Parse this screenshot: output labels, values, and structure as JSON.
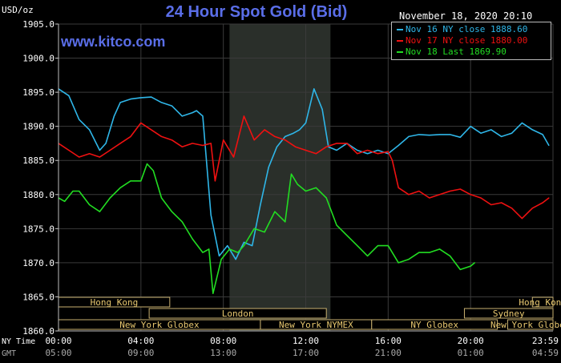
{
  "chart_data": {
    "type": "line",
    "title": "24 Hour Spot Gold (Bid)",
    "brand": "www.kitco.com",
    "unit_label": "USD/oz",
    "datestamp": "November 18, 2020 20:10",
    "ylim": [
      1860,
      1905
    ],
    "y_ticks": [
      "1905.0",
      "1900.0",
      "1895.0",
      "1890.0",
      "1885.0",
      "1880.0",
      "1875.0",
      "1870.0",
      "1865.0",
      "1860.0"
    ],
    "xlim": [
      0,
      24
    ],
    "x_ticks": [
      {
        "x": 0,
        "ny": "00:00",
        "gmt": "05:00"
      },
      {
        "x": 4,
        "ny": "04:00",
        "gmt": "09:00"
      },
      {
        "x": 8,
        "ny": "08:00",
        "gmt": "13:00"
      },
      {
        "x": 12,
        "ny": "12:00",
        "gmt": "17:00"
      },
      {
        "x": 16,
        "ny": "16:00",
        "gmt": "21:00"
      },
      {
        "x": 20,
        "ny": "20:00",
        "gmt": "01:00"
      },
      {
        "x": 24,
        "ny": "23:59",
        "gmt": "04:59"
      }
    ],
    "ny_time_label": "NY Time",
    "gmt_label": "GMT",
    "highlight_range": [
      8.3,
      13.2
    ],
    "grid": true,
    "legend_position": "top-right",
    "series": [
      {
        "name": "Nov 16 NY close 1888.60",
        "color": "#2fb6e8",
        "x": [
          0,
          0.5,
          1,
          1.5,
          2,
          2.3,
          2.7,
          3,
          3.5,
          4,
          4.5,
          5,
          5.5,
          6,
          6.5,
          6.7,
          7,
          7.4,
          7.8,
          8.2,
          8.6,
          9,
          9.4,
          9.8,
          10.2,
          10.6,
          11,
          11.4,
          11.7,
          12,
          12.4,
          12.8,
          13.1,
          13.5,
          14,
          14.5,
          15,
          15.5,
          16,
          16.5,
          17,
          17.5,
          18,
          18.5,
          19,
          19.5,
          20,
          20.5,
          21,
          21.5,
          22,
          22.5,
          23,
          23.5,
          23.8
        ],
        "y": [
          1895.5,
          1894.5,
          1891,
          1889.5,
          1886.5,
          1887.5,
          1891.5,
          1893.5,
          1894,
          1894.2,
          1894.3,
          1893.5,
          1893,
          1891.5,
          1892,
          1892.3,
          1891.5,
          1877,
          1871,
          1872.5,
          1870.5,
          1873,
          1872.5,
          1878.5,
          1884,
          1887,
          1888.5,
          1889,
          1889.5,
          1890.5,
          1895.5,
          1892.5,
          1887,
          1886.5,
          1887.5,
          1886.5,
          1886,
          1886.5,
          1886,
          1887.2,
          1888.5,
          1888.8,
          1888.7,
          1888.8,
          1888.8,
          1888.4,
          1890,
          1889,
          1889.5,
          1888.5,
          1889,
          1890.5,
          1889.5,
          1888.8,
          1887.2
        ]
      },
      {
        "name": "Nov 17 NY close 1880.00",
        "color": "#ee1111",
        "x": [
          0,
          0.5,
          1,
          1.5,
          2,
          2.5,
          3,
          3.5,
          4,
          4.5,
          5,
          5.5,
          6,
          6.5,
          7,
          7.4,
          7.6,
          8,
          8.5,
          9,
          9.5,
          10,
          10.5,
          11,
          11.5,
          12,
          12.5,
          13,
          13.5,
          14,
          14.5,
          15,
          15.5,
          16,
          16.2,
          16.5,
          17,
          17.5,
          18,
          18.5,
          19,
          19.5,
          20,
          20.5,
          21,
          21.5,
          22,
          22.5,
          23,
          23.5,
          23.8
        ],
        "y": [
          1887.5,
          1886.5,
          1885.5,
          1886,
          1885.5,
          1886.5,
          1887.5,
          1888.5,
          1890.5,
          1889.5,
          1888.5,
          1888,
          1887,
          1887.5,
          1887.2,
          1887.5,
          1882,
          1888,
          1885.5,
          1891.5,
          1888,
          1889.5,
          1888.5,
          1888,
          1887,
          1886.5,
          1886,
          1887,
          1887.5,
          1887.5,
          1886,
          1886.5,
          1886,
          1886.3,
          1885,
          1881,
          1880,
          1880.5,
          1879.5,
          1880,
          1880.5,
          1880.8,
          1880,
          1879.5,
          1878.5,
          1878.8,
          1878,
          1876.5,
          1878,
          1878.8,
          1879.5
        ]
      },
      {
        "name": "Nov 18 Last 1869.90",
        "color": "#22dd22",
        "x": [
          0,
          0.3,
          0.7,
          1,
          1.5,
          2,
          2.5,
          3,
          3.5,
          4,
          4.3,
          4.6,
          5,
          5.5,
          6,
          6.5,
          7,
          7.3,
          7.5,
          7.9,
          8.3,
          8.7,
          9,
          9.5,
          10,
          10.5,
          11,
          11.3,
          11.6,
          12,
          12.5,
          13,
          13.5,
          14,
          14.5,
          15,
          15.5,
          16,
          16.5,
          17,
          17.5,
          18,
          18.5,
          19,
          19.5,
          20,
          20.2
        ],
        "y": [
          1879.5,
          1879,
          1880.5,
          1880.5,
          1878.5,
          1877.5,
          1879.5,
          1881,
          1882,
          1882,
          1884.5,
          1883.5,
          1879.5,
          1877.5,
          1876,
          1873.5,
          1871.5,
          1872,
          1865.5,
          1870.5,
          1872,
          1871.5,
          1872.5,
          1875,
          1874.5,
          1877.5,
          1876,
          1883,
          1881.5,
          1880.5,
          1881,
          1879.5,
          1875.5,
          1874,
          1872.5,
          1871,
          1872.5,
          1872.5,
          1870,
          1870.5,
          1871.5,
          1871.5,
          1872,
          1871,
          1869,
          1869.5,
          1870
        ]
      }
    ],
    "sessions": [
      {
        "label": "Hong Kong",
        "start": 0,
        "end": 5.4,
        "row": 0
      },
      {
        "label": "London",
        "start": 4.4,
        "end": 13.0,
        "row": 1
      },
      {
        "label": "New York Globex",
        "start": 0,
        "end": 9.8,
        "row": 2
      },
      {
        "label": "New York NYMEX",
        "start": 9.8,
        "end": 15.2,
        "row": 2
      },
      {
        "label": "NY Globex",
        "start": 15.2,
        "end": 21.3,
        "row": 2
      },
      {
        "label": "Sydney",
        "start": 19.7,
        "end": 24,
        "row": 1
      },
      {
        "label": "Hong Kong",
        "start": 23.0,
        "end": 24,
        "row": 0
      },
      {
        "label": "New York Globex",
        "start": 21.8,
        "end": 24,
        "row": 2
      }
    ]
  }
}
